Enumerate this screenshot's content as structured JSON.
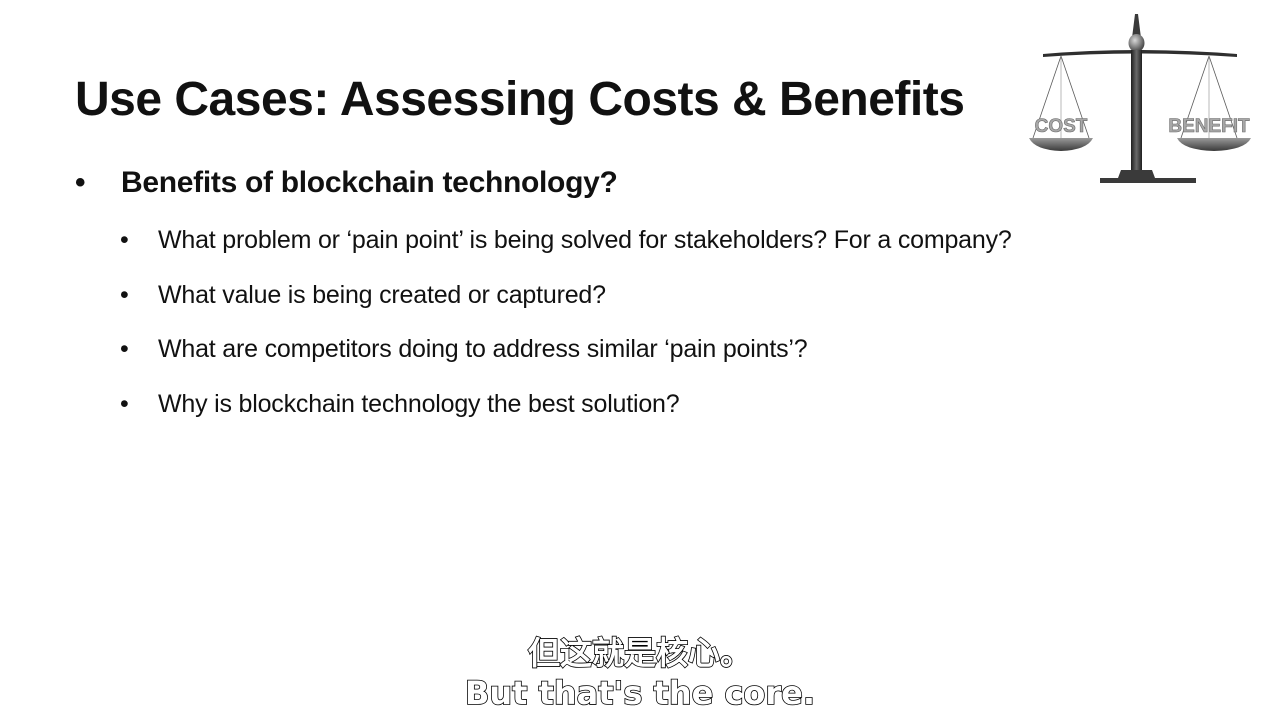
{
  "slide": {
    "title": "Use Cases: Assessing Costs & Benefits",
    "main_bullet": {
      "marker": "•",
      "text": "Benefits of blockchain technology?"
    },
    "sub_bullets": [
      {
        "marker": "•",
        "text": "What problem or ‘pain point’ is being solved for stakeholders?  For a company?"
      },
      {
        "marker": "•",
        "text": "What value is being created or captured?"
      },
      {
        "marker": "•",
        "text": "What are competitors doing to address similar ‘pain points’?"
      },
      {
        "marker": "•",
        "text": "Why is blockchain technology the best solution?"
      }
    ],
    "scale_image": {
      "left_label": "COST",
      "right_label": "BENEFIT",
      "icon": "balance-scale-icon"
    }
  },
  "subtitles": {
    "chinese": "但这就是核心。",
    "english": "But that's the core."
  },
  "colors": {
    "background": "#ffffff",
    "text": "#111111",
    "scale_metal": "#3a3a3a",
    "scale_label": "#a0a0a0"
  }
}
